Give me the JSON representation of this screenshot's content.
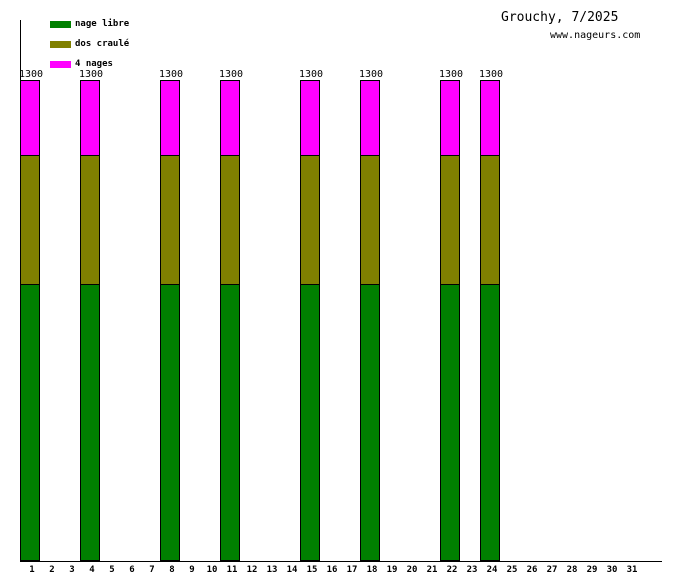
{
  "header": {
    "title": "Grouchy, 7/2025",
    "website": "www.nageurs.com"
  },
  "chart_data": {
    "type": "bar",
    "stacked": true,
    "title": "Grouchy, 7/2025",
    "subtitle": "www.nageurs.com",
    "xlabel": "",
    "ylabel": "",
    "grid": false,
    "legend_position": "top-left",
    "ylim": [
      0,
      1460
    ],
    "categories": [
      "1",
      "2",
      "3",
      "4",
      "5",
      "6",
      "7",
      "8",
      "9",
      "10",
      "11",
      "12",
      "13",
      "14",
      "15",
      "16",
      "17",
      "18",
      "19",
      "20",
      "21",
      "22",
      "23",
      "24",
      "25",
      "26",
      "27",
      "28",
      "29",
      "30",
      "31"
    ],
    "active_days": [
      1,
      4,
      8,
      11,
      15,
      18,
      22,
      24
    ],
    "bar_total": 1300,
    "bar_total_label": "1300",
    "series": [
      {
        "name": "nage libre",
        "color": "#008000",
        "values": [
          750,
          0,
          0,
          750,
          0,
          0,
          0,
          750,
          0,
          0,
          750,
          0,
          0,
          0,
          750,
          0,
          0,
          750,
          0,
          0,
          0,
          750,
          0,
          750,
          0,
          0,
          0,
          0,
          0,
          0,
          0
        ]
      },
      {
        "name": "dos craulé",
        "color": "#808000",
        "values": [
          350,
          0,
          0,
          350,
          0,
          0,
          0,
          350,
          0,
          0,
          350,
          0,
          0,
          0,
          350,
          0,
          0,
          350,
          0,
          0,
          0,
          350,
          0,
          350,
          0,
          0,
          0,
          0,
          0,
          0,
          0
        ]
      },
      {
        "name": "4 nages",
        "color": "#ff00ff",
        "values": [
          200,
          0,
          0,
          200,
          0,
          0,
          0,
          200,
          0,
          0,
          200,
          0,
          0,
          0,
          200,
          0,
          0,
          200,
          0,
          0,
          0,
          200,
          0,
          200,
          0,
          0,
          0,
          0,
          0,
          0,
          0
        ]
      }
    ]
  }
}
